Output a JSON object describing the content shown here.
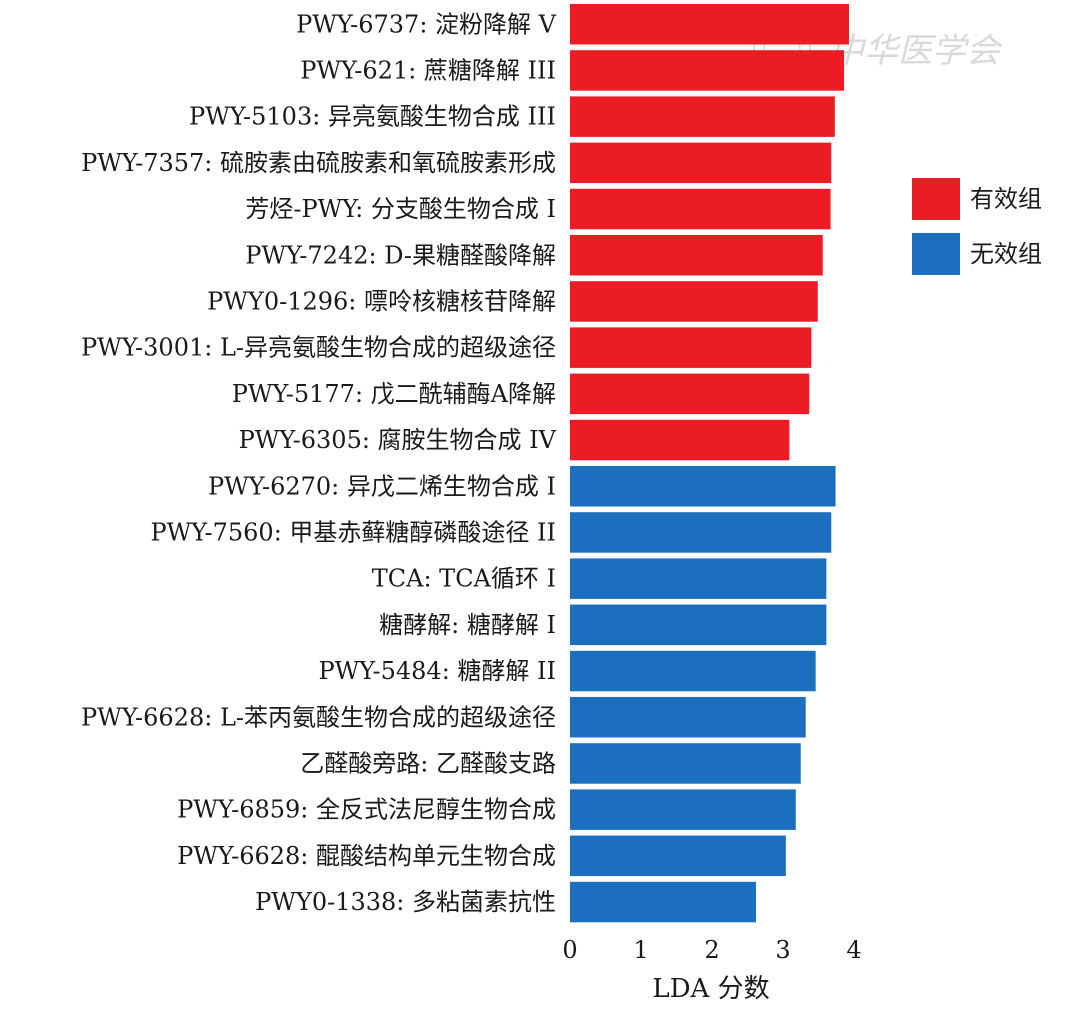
{
  "chart_data": {
    "type": "bar",
    "orientation": "horizontal",
    "categories": [
      "PWY-6737: 淀粉降解 V",
      "PWY-621: 蔗糖降解 III",
      "PWY-5103: 异亮氨酸生物合成 III",
      "PWY-7357: 硫胺素由硫胺素和氧硫胺素形成",
      "芳烃-PWY: 分支酸生物合成 I",
      "PWY-7242: D-果糖醛酸降解",
      "PWY0-1296: 嘌呤核糖核苷降解",
      "PWY-3001: L-异亮氨酸生物合成的超级途径",
      "PWY-5177: 戊二酰辅酶A降解",
      "PWY-6305: 腐胺生物合成 IV",
      "PWY-6270: 异戊二烯生物合成 I",
      "PWY-7560: 甲基赤藓糖醇磷酸途径 II",
      "TCA: TCA循环 I",
      "糖酵解: 糖酵解 I",
      "PWY-5484: 糖酵解 II",
      "PWY-6628: L-苯丙氨酸生物合成的超级途径",
      "乙醛酸旁路: 乙醛酸支路",
      "PWY-6859: 全反式法尼醇生物合成",
      "PWY-6628: 醌酸结构单元生物合成",
      "PWY0-1338: 多粘菌素抗性"
    ],
    "values": [
      3.93,
      3.86,
      3.73,
      3.68,
      3.67,
      3.56,
      3.49,
      3.4,
      3.37,
      3.09,
      3.74,
      3.68,
      3.61,
      3.61,
      3.46,
      3.32,
      3.25,
      3.18,
      3.04,
      2.62
    ],
    "groups": [
      0,
      0,
      0,
      0,
      0,
      0,
      0,
      0,
      0,
      0,
      1,
      1,
      1,
      1,
      1,
      1,
      1,
      1,
      1,
      1
    ],
    "series": [
      {
        "name": "有效组",
        "color": "#ec1c24"
      },
      {
        "name": "无效组",
        "color": "#1b6fbe"
      }
    ],
    "xlabel": "LDA 分数",
    "xlim": [
      0,
      4
    ],
    "xticks": [
      0,
      1,
      2,
      3,
      4
    ],
    "legend_position": "right"
  }
}
